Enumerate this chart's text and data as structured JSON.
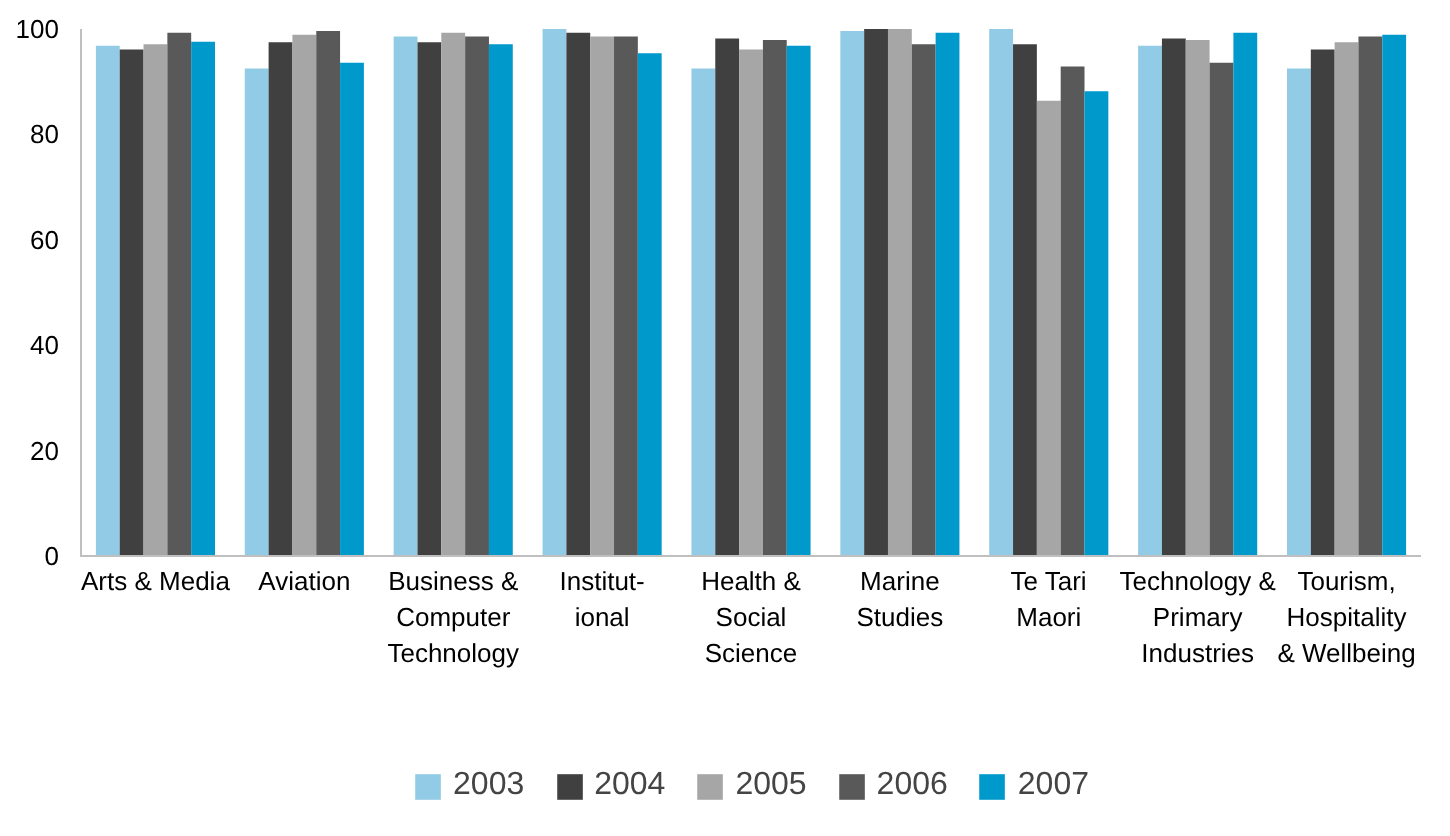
{
  "chart_data": {
    "type": "bar",
    "categories": [
      "Arts & Media",
      "Aviation",
      "Business & Computer Technology",
      "Institut-ional",
      "Health & Social Science",
      "Marine Studies",
      "Te Tari Maori",
      "Technology & Primary Industries",
      "Tourism, Hospitality & Wellbeing"
    ],
    "series": [
      {
        "name": "2003",
        "color": "#92cbe6",
        "values": [
          96.8,
          92.5,
          98.6,
          100,
          92.5,
          99.6,
          100,
          96.8,
          92.5
        ]
      },
      {
        "name": "2004",
        "color": "#404040",
        "values": [
          96.1,
          97.5,
          97.5,
          99.3,
          98.2,
          100,
          97.1,
          98.2,
          96.1
        ]
      },
      {
        "name": "2005",
        "color": "#a6a6a6",
        "values": [
          97.1,
          98.9,
          99.3,
          98.6,
          96.1,
          100,
          86.4,
          97.9,
          97.5
        ]
      },
      {
        "name": "2006",
        "color": "#595959",
        "values": [
          99.3,
          99.6,
          98.6,
          98.6,
          97.9,
          97.1,
          92.9,
          93.6,
          98.6
        ]
      },
      {
        "name": "2007",
        "color": "#0099cc",
        "values": [
          97.6,
          93.6,
          97.1,
          95.4,
          96.8,
          99.3,
          88.2,
          99.3,
          98.9
        ]
      }
    ],
    "ylim": [
      0,
      100
    ],
    "yticks": [
      0,
      20,
      40,
      60,
      80,
      100
    ],
    "legend": "bottom"
  }
}
